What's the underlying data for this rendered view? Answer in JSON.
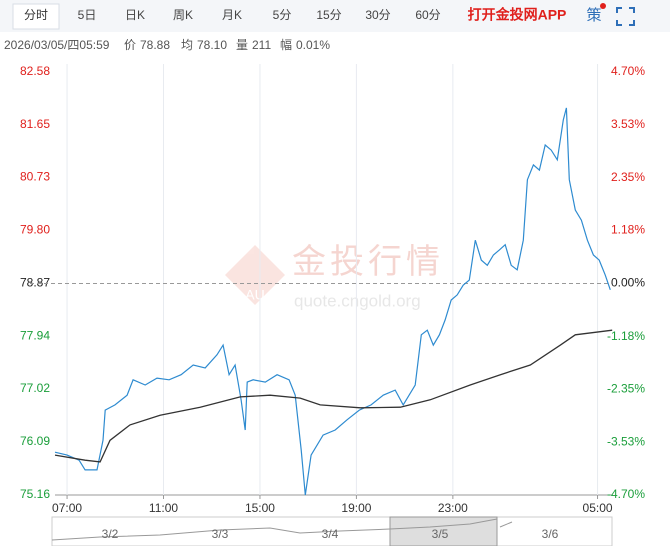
{
  "tabs": [
    "分时",
    "5日",
    "日K",
    "周K",
    "月K",
    "5分",
    "15分",
    "30分",
    "60分"
  ],
  "app_link": "打开金投网APP",
  "strategy": "策",
  "info": {
    "datetime": "2026/03/05/四05:59",
    "price_label": "价",
    "price": "78.88",
    "avg_label": "均",
    "avg": "78.10",
    "volume_label": "量",
    "volume": "211",
    "range_label": "幅",
    "range": "0.01%"
  },
  "watermark": {
    "title": "金投行情",
    "logo": "AU",
    "url": "quote.cngold.org"
  },
  "navigator": {
    "labels": [
      "3/2",
      "3/3",
      "3/4",
      "3/5",
      "3/6"
    ]
  },
  "chart_data": {
    "type": "line",
    "up_color": "#e0201c",
    "down_color": "#1a9e3a",
    "grid": true,
    "xlim": [
      6.5,
      29.6
    ],
    "xticks": [
      {
        "value": 7,
        "label": "07:00"
      },
      {
        "value": 11,
        "label": "11:00"
      },
      {
        "value": 15,
        "label": "15:00"
      },
      {
        "value": 19,
        "label": "19:00"
      },
      {
        "value": 23,
        "label": "23:00"
      },
      {
        "value": 29,
        "label": "05:00"
      }
    ],
    "ylim": [
      75.16,
      82.58
    ],
    "yticks": [
      82.58,
      81.65,
      80.73,
      {
        "value": 79.8,
        "label": "79.80"
      },
      78.87,
      77.94,
      77.02,
      76.09,
      75.16
    ],
    "y2lim": [
      -4.7,
      4.7
    ],
    "y2ticks": [
      {
        "value": 4.7,
        "label": "4.70%"
      },
      {
        "value": 3.53,
        "label": "3.53%"
      },
      {
        "value": 2.35,
        "label": "2.35%"
      },
      {
        "value": 1.18,
        "label": "1.18%"
      },
      {
        "value": 0,
        "label": "0.00%"
      },
      {
        "value": -1.18,
        "label": "-1.18%"
      },
      {
        "value": -2.35,
        "label": "-2.35%"
      },
      {
        "value": -3.53,
        "label": "-3.53%"
      },
      {
        "value": -4.7,
        "label": "-4.70%"
      }
    ],
    "series": [
      {
        "name": "价",
        "color": "#2e8bd0",
        "x": [
          6.5,
          7,
          7.5,
          7.75,
          8.24,
          8.49,
          8.58,
          8.99,
          9.49,
          9.74,
          10.24,
          10.73,
          11.23,
          11.73,
          12.23,
          12.73,
          13.22,
          13.47,
          13.72,
          13.97,
          14.22,
          14.39,
          14.47,
          14.72,
          15.22,
          15.71,
          16.21,
          16.46,
          16.71,
          16.88,
          17.12,
          17.62,
          18.12,
          18.62,
          19.12,
          19.61,
          20.11,
          20.61,
          20.94,
          21.44,
          21.69,
          21.94,
          22.19,
          22.44,
          22.68,
          22.93,
          23.18,
          23.43,
          23.68,
          23.93,
          24.18,
          24.43,
          24.68,
          24.93,
          25.17,
          25.42,
          25.67,
          25.92,
          26.09,
          26.34,
          26.59,
          26.83,
          27.08,
          27.33,
          27.58,
          27.71,
          27.83,
          28.08,
          28.33,
          28.58,
          28.83,
          29.07,
          29.32,
          29.53
        ],
        "values": [
          75.91,
          75.86,
          75.77,
          75.6,
          75.6,
          76.12,
          76.65,
          76.74,
          76.91,
          77.18,
          77.09,
          77.21,
          77.18,
          77.27,
          77.44,
          77.39,
          77.62,
          77.79,
          77.27,
          77.44,
          76.83,
          76.3,
          77.14,
          77.18,
          77.14,
          77.27,
          77.18,
          76.91,
          75.95,
          75.16,
          75.86,
          76.21,
          76.3,
          76.48,
          76.65,
          76.74,
          76.91,
          77,
          76.74,
          77.09,
          77.97,
          78.05,
          77.79,
          77.97,
          78.23,
          78.58,
          78.67,
          78.84,
          78.93,
          79.63,
          79.28,
          79.19,
          79.37,
          79.46,
          79.55,
          79.19,
          79.11,
          79.63,
          80.69,
          80.95,
          80.86,
          81.3,
          81.21,
          81.04,
          81.74,
          81.95,
          80.69,
          80.16,
          79.98,
          79.63,
          79.37,
          79.28,
          79.02,
          78.76
        ]
      },
      {
        "name": "均",
        "color": "#333333",
        "x": [
          6.5,
          7.75,
          8.37,
          8.78,
          9.61,
          10.86,
          12.52,
          14.18,
          15.42,
          16.67,
          17.5,
          19.16,
          20.82,
          22.06,
          23.72,
          24.97,
          26.21,
          27.46,
          28.08,
          29.61
        ],
        "values": [
          75.86,
          75.77,
          75.74,
          76.12,
          76.39,
          76.56,
          76.7,
          76.88,
          76.91,
          76.86,
          76.74,
          76.69,
          76.7,
          76.83,
          77.09,
          77.27,
          77.44,
          77.79,
          77.97,
          78.05
        ]
      }
    ]
  }
}
